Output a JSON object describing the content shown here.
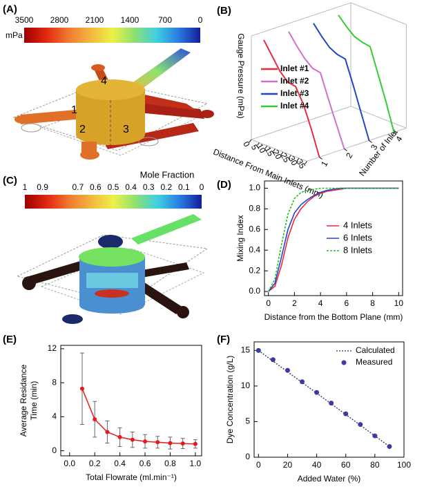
{
  "chart_data": [
    {
      "type": "colorbar",
      "label": "(A)",
      "unit": "mPa",
      "ticks": [
        3500,
        2800,
        2100,
        1400,
        700,
        0
      ],
      "lim": [
        3500,
        0
      ],
      "colors": [
        "#9e0000",
        "#e02810",
        "#f07a30",
        "#f2b640",
        "#eef048",
        "#8ee070",
        "#40d0e0",
        "#2a7ee0",
        "#141c9c"
      ],
      "annotations": [
        "1",
        "2",
        "3",
        "4"
      ]
    },
    {
      "type": "line3d",
      "label": "(B)",
      "zlabel": "Gauge Pressure (mPa)",
      "xlabel": "Distance From Main Inlets (mm)",
      "ylabel": "Number of Inlet",
      "xlim": [
        0,
        35
      ],
      "xticks": [
        0,
        5,
        10,
        15,
        20,
        25,
        30,
        35
      ],
      "ylim": [
        0.5,
        4.5
      ],
      "yticks": [
        1,
        2,
        3,
        4
      ],
      "zlim": [
        0,
        3800
      ],
      "x": [
        0,
        5,
        10,
        15,
        20,
        25,
        30,
        35
      ],
      "series": [
        {
          "name": "Inlet #1",
          "color": "#e8283c",
          "values": [
            3500,
            3050,
            2600,
            2300,
            2250,
            1700,
            900,
            0
          ]
        },
        {
          "name": "Inlet #2",
          "color": "#d070c8",
          "values": [
            3500,
            3100,
            2750,
            2500,
            2450,
            1600,
            800,
            0
          ]
        },
        {
          "name": "Inlet #3",
          "color": "#2244cc",
          "values": [
            3500,
            3150,
            2850,
            2700,
            2650,
            1800,
            900,
            0
          ]
        },
        {
          "name": "Inlet #4",
          "color": "#33cc33",
          "values": [
            3500,
            3200,
            2950,
            2850,
            2800,
            1900,
            1000,
            0
          ]
        }
      ]
    },
    {
      "type": "colorbar",
      "label": "(C)",
      "title": "Mole Fraction",
      "ticks": [
        1,
        0.9,
        0.7,
        0.6,
        0.5,
        0.4,
        0.3,
        0.2,
        0.1,
        0
      ],
      "lim": [
        1,
        0
      ],
      "colors": [
        "#9e0000",
        "#e02810",
        "#f07a30",
        "#f2b640",
        "#eef048",
        "#8ee070",
        "#40d0e0",
        "#2a7ee0",
        "#141c9c"
      ]
    },
    {
      "type": "line",
      "label": "(D)",
      "xlabel": "Distance from the Bottom Plane (mm)",
      "ylabel": "Mixing Index",
      "xlim": [
        -0.3,
        10.3
      ],
      "xticks": [
        0,
        2,
        4,
        6,
        8,
        10
      ],
      "ylim": [
        -0.04,
        1.07
      ],
      "yticks": [
        {
          "value": 0,
          "label": "0.0"
        },
        0.2,
        0.4,
        0.6,
        0.8,
        {
          "value": 1,
          "label": "1.0"
        }
      ],
      "x": [
        0,
        0.5,
        1,
        1.5,
        2,
        2.5,
        3,
        3.5,
        4,
        4.5,
        5,
        5.5,
        6,
        8,
        10
      ],
      "legend": "right",
      "series": [
        {
          "name": "4 Inlets",
          "color": "#e8283c",
          "style": "solid",
          "values": [
            0,
            0.05,
            0.25,
            0.52,
            0.7,
            0.8,
            0.87,
            0.92,
            0.95,
            0.97,
            0.98,
            0.99,
            1,
            1,
            1
          ]
        },
        {
          "name": "6 Inlets",
          "color": "#2244cc",
          "style": "solid",
          "values": [
            0,
            0.08,
            0.33,
            0.6,
            0.76,
            0.84,
            0.89,
            0.93,
            0.96,
            0.98,
            0.99,
            1,
            1,
            1,
            1
          ]
        },
        {
          "name": "8 Inlets",
          "color": "#22bb22",
          "style": "dashed",
          "values": [
            0,
            0.12,
            0.45,
            0.75,
            0.9,
            0.96,
            0.98,
            0.99,
            1,
            1,
            1,
            1,
            1,
            1,
            1
          ]
        }
      ]
    },
    {
      "type": "errorbar",
      "label": "(E)",
      "xlabel": "Total Flowrate (ml.min⁻¹)",
      "ylabel": [
        "Average Residance",
        "Time (min)"
      ],
      "xlim": [
        -0.07,
        1.05
      ],
      "xticks": [
        {
          "value": 0,
          "label": "0.0"
        },
        0.2,
        0.4,
        0.6,
        0.8,
        {
          "value": 1,
          "label": "1.0"
        }
      ],
      "ylim": [
        -0.6,
        12.4
      ],
      "yticks": [
        0,
        4,
        8,
        12
      ],
      "color": "#e8191e",
      "x": [
        0.1,
        0.2,
        0.3,
        0.4,
        0.5,
        0.6,
        0.7,
        0.8,
        0.9,
        1.0
      ],
      "values": [
        7.3,
        3.7,
        2.2,
        1.6,
        1.3,
        1.1,
        1.0,
        0.9,
        0.85,
        0.8
      ],
      "errors": [
        4.2,
        2.1,
        1.3,
        1.1,
        0.9,
        0.8,
        0.7,
        0.7,
        0.6,
        0.5
      ]
    },
    {
      "type": "scatter",
      "label": "(F)",
      "xlabel": "Added Water (%)",
      "ylabel": "Dye Concentration (g/L)",
      "xlim": [
        -3,
        100
      ],
      "xticks": [
        0,
        20,
        40,
        60,
        80,
        100
      ],
      "ylim": [
        0,
        16.2
      ],
      "yticks": [
        0,
        5,
        10,
        15
      ],
      "legend": "upper right",
      "series": [
        {
          "name": "Calculated",
          "color": "#1a2a6a",
          "style": "dotted",
          "x": [
            0,
            90
          ],
          "values": [
            15,
            1.5
          ]
        },
        {
          "name": "Measured",
          "color": "#3b3b9e",
          "style": "markers",
          "x": [
            0,
            10,
            20,
            30,
            40,
            50,
            60,
            70,
            80,
            90
          ],
          "values": [
            15,
            13.7,
            12.2,
            10.6,
            9.1,
            7.6,
            6.1,
            4.6,
            3.0,
            1.5
          ]
        }
      ]
    }
  ]
}
